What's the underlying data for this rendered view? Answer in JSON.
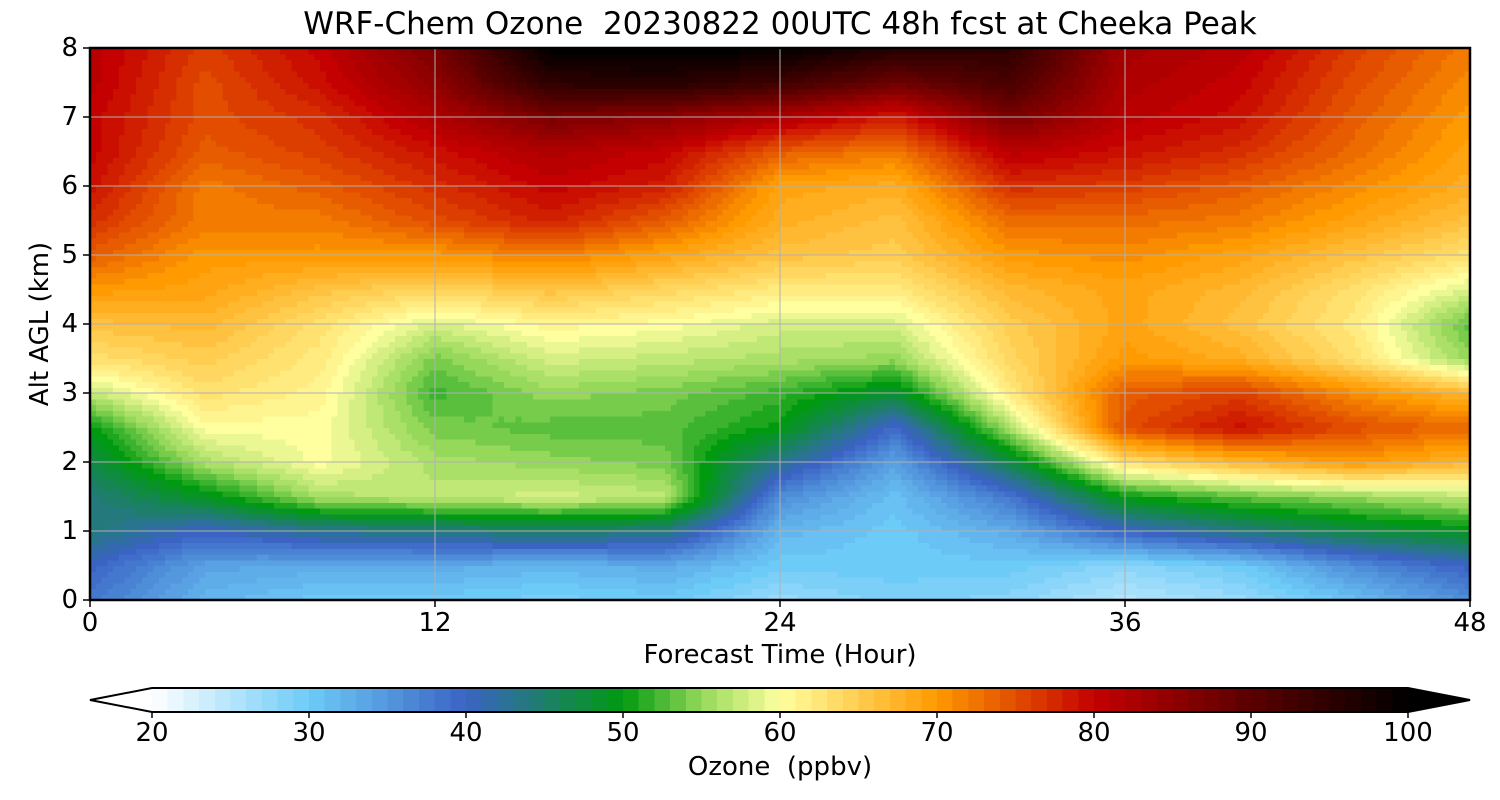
{
  "chart_data": {
    "type": "heatmap",
    "title": "WRF-Chem Ozone  20230822 00UTC 48h fcst at Cheeka Peak",
    "xlabel": "Forecast Time (Hour)",
    "ylabel": "Alt AGL (km)",
    "xlim": [
      0,
      48
    ],
    "ylim": [
      0,
      8
    ],
    "x_ticks": [
      0,
      12,
      24,
      36,
      48
    ],
    "y_ticks": [
      0,
      1,
      2,
      3,
      4,
      5,
      6,
      7,
      8
    ],
    "grid": true,
    "x": [
      0,
      4,
      8,
      12,
      16,
      20,
      24,
      28,
      32,
      36,
      40,
      44,
      48
    ],
    "y": [
      0,
      0.5,
      1,
      1.5,
      2,
      2.5,
      3,
      3.5,
      4,
      4.5,
      5,
      5.5,
      6,
      6.5,
      7,
      7.5,
      8
    ],
    "z": [
      [
        38,
        32,
        30,
        30,
        29,
        30,
        27,
        29,
        28,
        25,
        27,
        31,
        36
      ],
      [
        40,
        34,
        33,
        33,
        32,
        33,
        30,
        30,
        30,
        28,
        30,
        36,
        40
      ],
      [
        44,
        40,
        43,
        44,
        45,
        44,
        32,
        30,
        33,
        40,
        44,
        47,
        49
      ],
      [
        44,
        49,
        56,
        57,
        58,
        57,
        36,
        31,
        38,
        50,
        53,
        55,
        57
      ],
      [
        47,
        56,
        60,
        56,
        55,
        54,
        43,
        34,
        47,
        63,
        67,
        70,
        67
      ],
      [
        50,
        60,
        60,
        54,
        53,
        53,
        50,
        39,
        56,
        75,
        79,
        75,
        73
      ],
      [
        57,
        63,
        61,
        52,
        55,
        54,
        52,
        48,
        62,
        74,
        76,
        71,
        67
      ],
      [
        63,
        65,
        62,
        54,
        58,
        57,
        56,
        55,
        64,
        70,
        68,
        63,
        55
      ],
      [
        66,
        67,
        63,
        58,
        61,
        60,
        58,
        58,
        65,
        69,
        66,
        62,
        53
      ],
      [
        70,
        69,
        66,
        64,
        66,
        64,
        62,
        62,
        67,
        69,
        67,
        63,
        58
      ],
      [
        74,
        70,
        70,
        70,
        72,
        69,
        66,
        65,
        70,
        71,
        69,
        66,
        63
      ],
      [
        77,
        72,
        72,
        75,
        78,
        74,
        68,
        66,
        73,
        73,
        72,
        69,
        66
      ],
      [
        79,
        72,
        74,
        77,
        80,
        78,
        69,
        68,
        77,
        76,
        74,
        71,
        68
      ],
      [
        80,
        74,
        76,
        79,
        82,
        80,
        74,
        72,
        81,
        79,
        77,
        73,
        69
      ],
      [
        80,
        75,
        77,
        82,
        87,
        85,
        82,
        78,
        87,
        81,
        79,
        74,
        70
      ],
      [
        81,
        75,
        79,
        85,
        95,
        96,
        93,
        88,
        92,
        82,
        80,
        75,
        71
      ],
      [
        81,
        76,
        80,
        87,
        100,
        100,
        100,
        96,
        95,
        83,
        81,
        76,
        72
      ]
    ],
    "colorbar": {
      "label": "Ozone  (ppbv)",
      "min": 20,
      "max": 100,
      "ticks": [
        20,
        30,
        40,
        50,
        60,
        70,
        80,
        90,
        100
      ],
      "extend": "both",
      "orientation": "horizontal",
      "stops": [
        [
          20,
          "#ffffff"
        ],
        [
          30,
          "#6dcbf7"
        ],
        [
          40,
          "#3a63c4"
        ],
        [
          50,
          "#009a10"
        ],
        [
          55,
          "#95d85a"
        ],
        [
          60,
          "#ffffa0"
        ],
        [
          70,
          "#ff9a00"
        ],
        [
          80,
          "#c40000"
        ],
        [
          90,
          "#5a0000"
        ],
        [
          100,
          "#000000"
        ]
      ]
    }
  }
}
